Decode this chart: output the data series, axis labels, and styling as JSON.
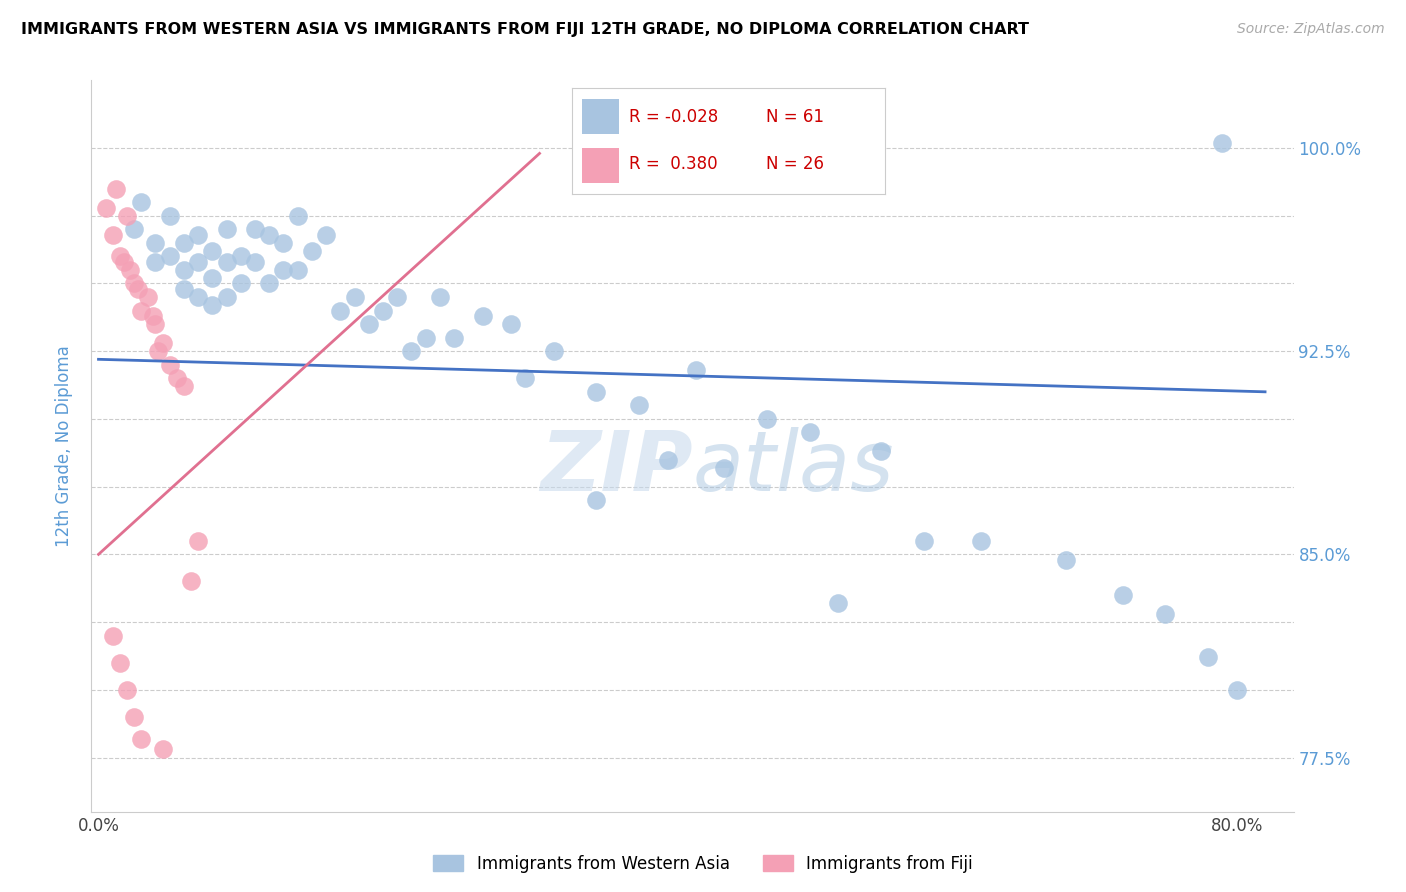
{
  "title": "IMMIGRANTS FROM WESTERN ASIA VS IMMIGRANTS FROM FIJI 12TH GRADE, NO DIPLOMA CORRELATION CHART",
  "source": "Source: ZipAtlas.com",
  "ylabel": "12th Grade, No Diploma",
  "legend_labels": [
    "Immigrants from Western Asia",
    "Immigrants from Fiji"
  ],
  "blue_R": -0.028,
  "blue_N": 61,
  "pink_R": 0.38,
  "pink_N": 26,
  "blue_color": "#a8c4e0",
  "pink_color": "#f4a0b5",
  "blue_line_color": "#4472c4",
  "pink_line_color": "#e07090",
  "watermark_zip": "ZIP",
  "watermark_atlas": "atlas",
  "xlim_min": -0.005,
  "xlim_max": 0.84,
  "ylim_min": 0.755,
  "ylim_max": 1.025,
  "ytick_vals": [
    0.775,
    0.8,
    0.825,
    0.85,
    0.875,
    0.9,
    0.925,
    0.95,
    0.975,
    1.0
  ],
  "ytick_labeled": {
    "0.775": "77.5%",
    "0.850": "85.0%",
    "0.925": "92.5%",
    "1.000": "100.0%"
  },
  "xtick_vals": [
    0.0,
    0.1,
    0.2,
    0.3,
    0.4,
    0.5,
    0.6,
    0.7,
    0.8
  ],
  "xtick_labels": [
    "0.0%",
    "",
    "",
    "",
    "",
    "",
    "",
    "",
    "80.0%"
  ],
  "blue_scatter_x": [
    0.025,
    0.03,
    0.04,
    0.04,
    0.05,
    0.05,
    0.06,
    0.06,
    0.06,
    0.07,
    0.07,
    0.07,
    0.08,
    0.08,
    0.08,
    0.09,
    0.09,
    0.09,
    0.1,
    0.1,
    0.11,
    0.11,
    0.12,
    0.12,
    0.13,
    0.13,
    0.14,
    0.14,
    0.15,
    0.16,
    0.17,
    0.18,
    0.19,
    0.2,
    0.21,
    0.22,
    0.23,
    0.24,
    0.25,
    0.27,
    0.29,
    0.3,
    0.32,
    0.35,
    0.38,
    0.42,
    0.47,
    0.5,
    0.55,
    0.58,
    0.62,
    0.68,
    0.72,
    0.75,
    0.78,
    0.8,
    0.35,
    0.4,
    0.44,
    0.52,
    0.79
  ],
  "blue_scatter_y": [
    0.97,
    0.98,
    0.965,
    0.958,
    0.96,
    0.975,
    0.965,
    0.955,
    0.948,
    0.968,
    0.958,
    0.945,
    0.962,
    0.952,
    0.942,
    0.97,
    0.958,
    0.945,
    0.96,
    0.95,
    0.97,
    0.958,
    0.968,
    0.95,
    0.965,
    0.955,
    0.955,
    0.975,
    0.962,
    0.968,
    0.94,
    0.945,
    0.935,
    0.94,
    0.945,
    0.925,
    0.93,
    0.945,
    0.93,
    0.938,
    0.935,
    0.915,
    0.925,
    0.91,
    0.905,
    0.918,
    0.9,
    0.895,
    0.888,
    0.855,
    0.855,
    0.848,
    0.835,
    0.828,
    0.812,
    0.8,
    0.87,
    0.885,
    0.882,
    0.832,
    1.002
  ],
  "pink_scatter_x": [
    0.005,
    0.01,
    0.012,
    0.015,
    0.018,
    0.02,
    0.022,
    0.025,
    0.028,
    0.03,
    0.035,
    0.038,
    0.04,
    0.042,
    0.045,
    0.05,
    0.055,
    0.06,
    0.065,
    0.07,
    0.01,
    0.015,
    0.02,
    0.025,
    0.03,
    0.045
  ],
  "pink_scatter_y": [
    0.978,
    0.968,
    0.985,
    0.96,
    0.958,
    0.975,
    0.955,
    0.95,
    0.948,
    0.94,
    0.945,
    0.938,
    0.935,
    0.925,
    0.928,
    0.92,
    0.915,
    0.912,
    0.84,
    0.855,
    0.82,
    0.81,
    0.8,
    0.79,
    0.782,
    0.778
  ],
  "blue_line_x0": 0.0,
  "blue_line_x1": 0.82,
  "blue_line_y0": 0.922,
  "blue_line_y1": 0.91,
  "pink_line_x0": 0.0,
  "pink_line_x1": 0.31,
  "pink_line_y0": 0.85,
  "pink_line_y1": 0.998
}
